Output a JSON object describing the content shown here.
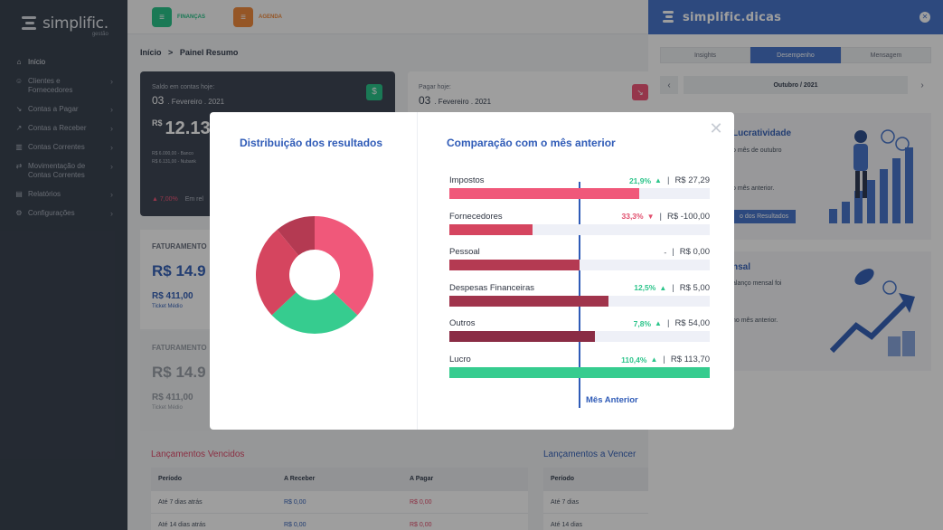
{
  "brand": {
    "name": "simplific.",
    "sub": "gestão"
  },
  "sidebar": {
    "items": [
      {
        "label": "Início",
        "icon": "home-icon"
      },
      {
        "label": "Clientes e Fornecedores",
        "icon": "users-icon"
      },
      {
        "label": "Contas a Pagar",
        "icon": "arrow-down-icon"
      },
      {
        "label": "Contas a Receber",
        "icon": "arrow-up-icon"
      },
      {
        "label": "Contas Correntes",
        "icon": "bank-icon"
      },
      {
        "label": "Movimentação de Contas Correntes",
        "icon": "transfer-icon"
      },
      {
        "label": "Relatórios",
        "icon": "report-icon"
      },
      {
        "label": "Configurações",
        "icon": "gear-icon"
      }
    ]
  },
  "topbar": {
    "tabs": [
      {
        "label": "FINANÇAS",
        "color": "#2bc48a"
      },
      {
        "label": "AGENDA",
        "color": "#f08b3e"
      }
    ]
  },
  "breadcrumb": {
    "home": "Início",
    "sep": ">",
    "current": "Painel Resumo"
  },
  "cards": {
    "balance": {
      "title": "Saldo em contas hoje:",
      "day": "03",
      "date": ". Fevereiro . 2021",
      "currency": "R$",
      "amount": "12.13",
      "line1": "R$ 6.000,00 - Banco",
      "line2": "R$ 6.131,00 - Nubank",
      "change": "7,00%",
      "change_suffix": "Em rel"
    },
    "pay": {
      "title": "Pagar hoje:",
      "day": "03",
      "date": ". Fevereiro . 2021"
    },
    "fat1": {
      "title": "FATURAMENTO",
      "amount": "R$ 14.9",
      "sub_amount": "R$ 411,00",
      "sub_label": "Ticket Médio"
    },
    "fat2": {
      "title": "FATURAMENTO",
      "amount": "R$ 14.9",
      "sub_amount": "R$ 411,00",
      "sub_label": "Ticket Médio"
    }
  },
  "overdue": {
    "title": "Lançamentos Vencidos",
    "headers": [
      "Período",
      "A Receber",
      "A Pagar"
    ],
    "rows": [
      [
        "Até 7 dias atrás",
        "R$ 0,00",
        "R$ 0,00"
      ],
      [
        "Até 14 dias atrás",
        "R$ 0,00",
        "R$ 0,00"
      ]
    ]
  },
  "upcoming": {
    "title": "Lançamentos a Vencer",
    "headers": [
      "Período"
    ],
    "rows": [
      [
        "Até 7 dias"
      ],
      [
        "Até 14 dias"
      ]
    ]
  },
  "tips": {
    "title": "simplific.dicas",
    "tabs": [
      "Insights",
      "Desempenho",
      "Mensagem"
    ],
    "active_tab": 1,
    "month": "Outubro / 2021",
    "card1": {
      "title": "Lucratividade",
      "text1": "o mês de outubro",
      "text2": "o mês anterior.",
      "button": "o dos Resultados"
    },
    "card2": {
      "title": "nsal",
      "text1": "alanço mensal foi",
      "text2": "no mês anterior."
    }
  },
  "modal": {
    "left_title": "Distribuição dos resultados",
    "right_title": "Comparação com o mês anterior",
    "reference_label": "Mês Anterior",
    "donut": [
      {
        "value": 37,
        "color": "#f0587a"
      },
      {
        "value": 26,
        "color": "#36cc8f"
      },
      {
        "value": 26,
        "color": "#d5455f"
      },
      {
        "value": 11,
        "color": "#b43a52"
      }
    ],
    "rows": [
      {
        "label": "Impostos",
        "pct": "21,9%",
        "dir": "up",
        "value": "R$ 27,29",
        "fill": 0.73,
        "color": "#f0587a"
      },
      {
        "label": "Fornecedores",
        "pct": "33,3%",
        "dir": "down",
        "value": "R$ -100,00",
        "fill": 0.32,
        "color": "#d5455f"
      },
      {
        "label": "Pessoal",
        "pct": "-",
        "dir": "none",
        "value": "R$ 0,00",
        "fill": 0.5,
        "color": "#b43a52"
      },
      {
        "label": "Despesas Financeiras",
        "pct": "12,5%",
        "dir": "up",
        "value": "R$ 5,00",
        "fill": 0.61,
        "color": "#a0344c"
      },
      {
        "label": "Outros",
        "pct": "7,8%",
        "dir": "up",
        "value": "R$ 54,00",
        "fill": 0.56,
        "color": "#8a2c45"
      },
      {
        "label": "Lucro",
        "pct": "110,4%",
        "dir": "up",
        "value": "R$ 113,70",
        "fill": 1.0,
        "color": "#36cc8f"
      }
    ]
  }
}
